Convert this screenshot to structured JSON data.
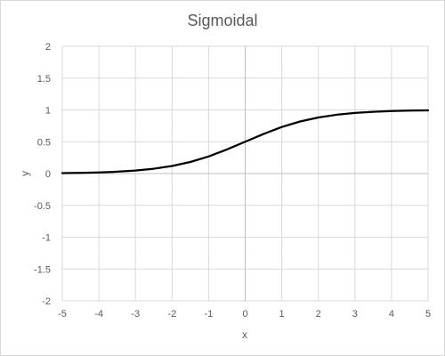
{
  "chart_data": {
    "type": "line",
    "title": "Sigmoidal",
    "xlabel": "x",
    "ylabel": "y",
    "xlim": [
      -5,
      5
    ],
    "ylim": [
      -2,
      2
    ],
    "x_ticks": [
      -5,
      -4,
      -3,
      -2,
      -1,
      0,
      1,
      2,
      3,
      4,
      5
    ],
    "y_ticks": [
      -2,
      -1.5,
      -1,
      -0.5,
      0,
      0.5,
      1,
      1.5,
      2
    ],
    "grid": true,
    "legend": "none",
    "line_color": "#000000",
    "series": [
      {
        "x": [
          -5,
          -4.5,
          -4,
          -3.5,
          -3,
          -2.5,
          -2,
          -1.5,
          -1,
          -0.5,
          0,
          0.5,
          1,
          1.5,
          2,
          2.5,
          3,
          3.5,
          4,
          4.5,
          5
        ],
        "values": [
          0.0067,
          0.011,
          0.018,
          0.029,
          0.047,
          0.076,
          0.119,
          0.182,
          0.269,
          0.378,
          0.5,
          0.622,
          0.731,
          0.818,
          0.881,
          0.924,
          0.953,
          0.971,
          0.982,
          0.989,
          0.9933
        ]
      }
    ]
  }
}
